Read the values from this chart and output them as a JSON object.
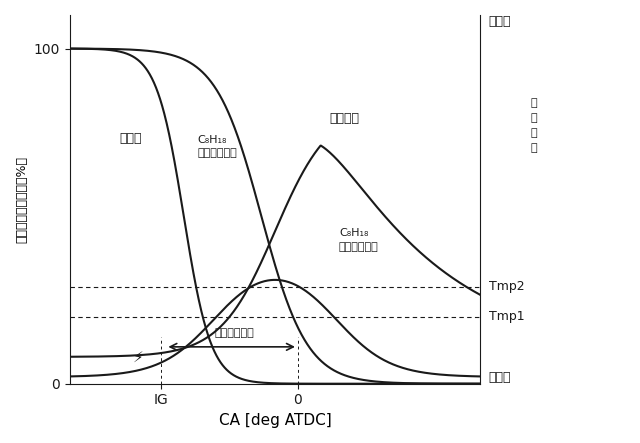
{
  "xlabel": "CA [deg ATDC]",
  "ylabel_left": "燃料・オゾン割合［%］",
  "tmp2_label": "Tmp2",
  "tmp1_label": "Tmp1",
  "xtick_labels": [
    "IG",
    "0"
  ],
  "ytick_labels": [
    "0",
    "100"
  ],
  "arrow_label": "初期燃焼期間",
  "line_color": "#1a1a1a",
  "background_color": "#ffffff",
  "tmp1_y": 20,
  "tmp2_y": 29,
  "xlim": [
    -50,
    40
  ],
  "ylim": [
    0,
    110
  ]
}
